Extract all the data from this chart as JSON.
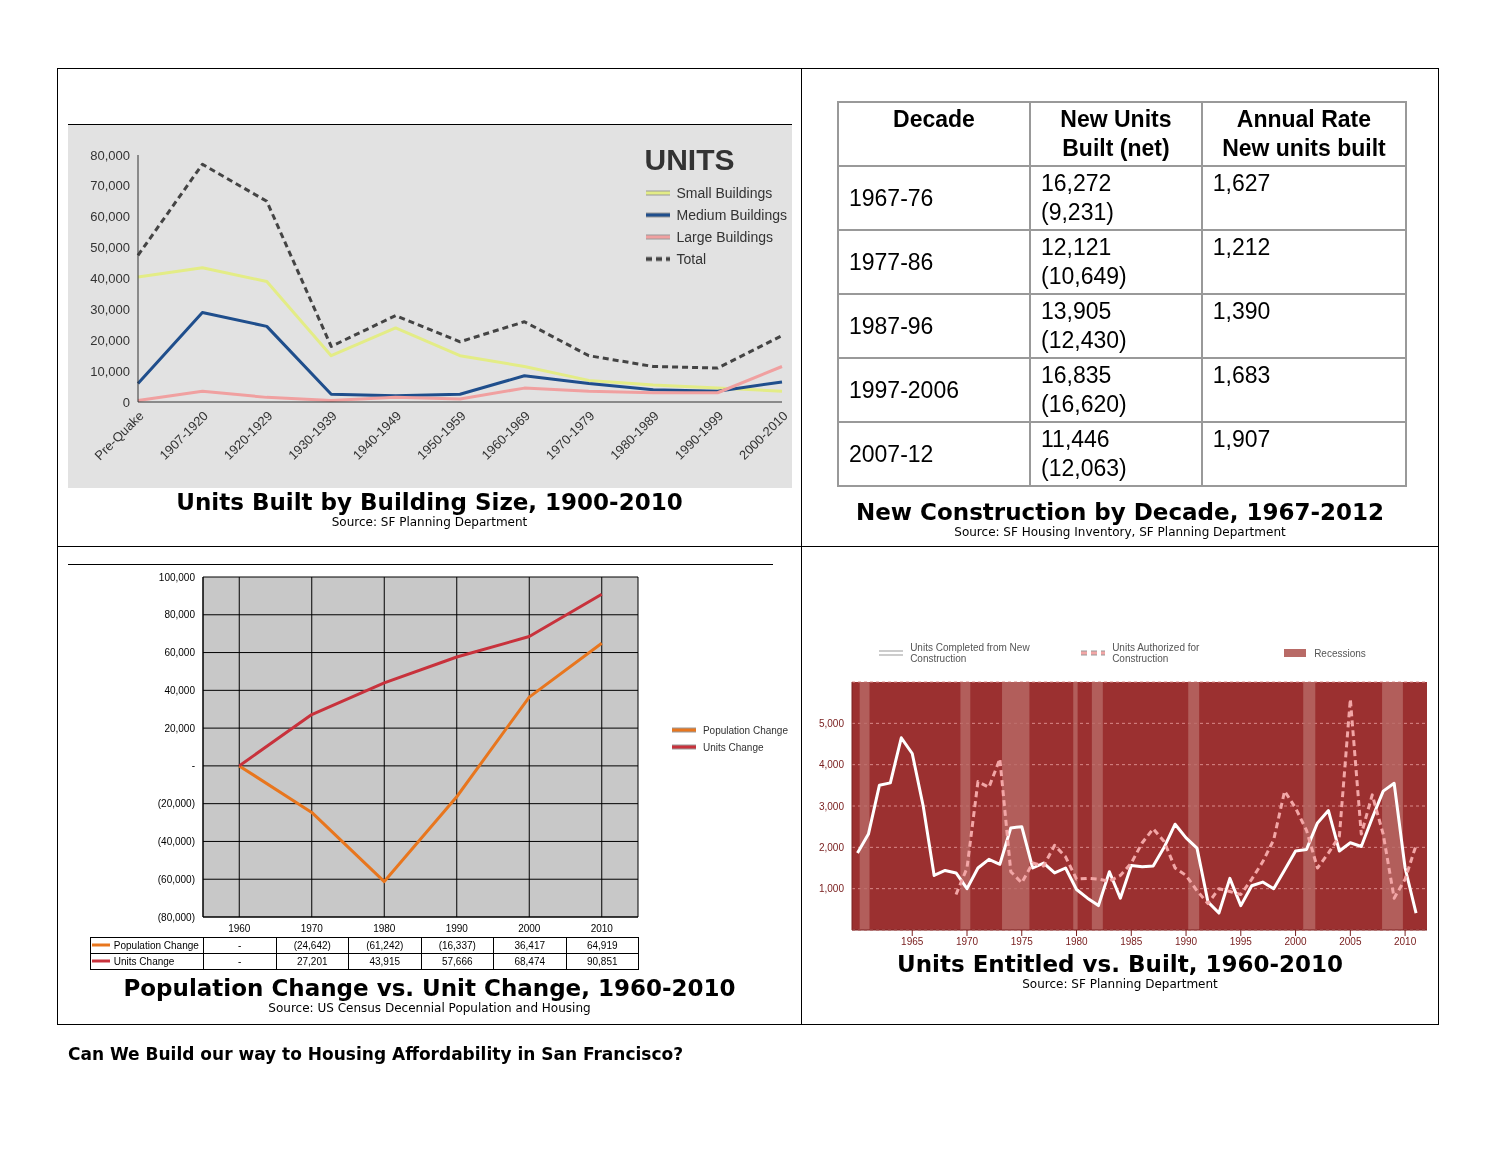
{
  "chart_data": [
    {
      "type": "line",
      "title": "Units Built by Building Size, 1900-2010",
      "annotations": [
        "Source: SF Planning Department"
      ],
      "legend_title": "UNITS",
      "legend": "top right",
      "categories": [
        "Pre-Quake",
        "1907-1920",
        "1920-1929",
        "1930-1939",
        "1940-1949",
        "1950-1959",
        "1960-1969",
        "1970-1979",
        "1980-1989",
        "1990-1999",
        "2000-2010"
      ],
      "ylim": [
        0,
        80000
      ],
      "yticks": [
        0,
        {
          "value": 10000,
          "label": "10,000"
        },
        {
          "value": 20000,
          "label": "20,000"
        },
        {
          "value": 30000,
          "label": "30,000"
        },
        {
          "value": 40000,
          "label": "40,000"
        },
        {
          "value": 50000,
          "label": "50,000"
        },
        {
          "value": 60000,
          "label": "60,000"
        },
        {
          "value": 70000,
          "label": "70,000"
        },
        {
          "value": 80000,
          "label": "80,000"
        }
      ],
      "series": [
        {
          "name": "Small Buildings",
          "color": "#e3ec86",
          "values": [
            40500,
            43500,
            39000,
            15000,
            24000,
            15000,
            11500,
            7000,
            5500,
            4500,
            3500
          ]
        },
        {
          "name": "Medium Buildings",
          "color": "#1f4e8c",
          "values": [
            6000,
            29000,
            24500,
            2500,
            2000,
            2500,
            8500,
            6000,
            4000,
            3500,
            6500
          ]
        },
        {
          "name": "Large Buildings",
          "color": "#f0a0a0",
          "values": [
            500,
            3500,
            1500,
            500,
            1500,
            1000,
            4500,
            3500,
            3000,
            3000,
            11500
          ]
        },
        {
          "name": "Total",
          "color": "#444444",
          "line_style": "dashed",
          "values": [
            47500,
            77000,
            65000,
            18000,
            28000,
            19500,
            26000,
            15000,
            11500,
            11000,
            21500
          ]
        }
      ]
    },
    {
      "type": "other",
      "title": "New Construction by Decade, 1967-2012",
      "annotations": [
        "Source: SF Housing Inventory, SF Planning Department"
      ],
      "xlabel": "Decade",
      "categories": [
        "1967-76",
        "1977-86",
        "1987-96",
        "1997-2006",
        "2007-12"
      ],
      "series": [
        {
          "name": "New Units Built (net)",
          "values": [
            16272,
            12121,
            13905,
            16835,
            11446
          ],
          "value_labels": [
            "16,272",
            "12,121",
            "13,905",
            "16,835",
            "11,446"
          ]
        },
        {
          "values": [
            9231,
            10649,
            12430,
            16620,
            12063
          ],
          "value_labels": [
            "(9,231)",
            "(10,649)",
            "(12,430)",
            "(16,620)",
            "(12,063)"
          ]
        },
        {
          "name": "Annual Rate New units built",
          "values": [
            1627,
            1212,
            1390,
            1683,
            1907
          ],
          "value_labels": [
            "1,627",
            "1,212",
            "1,390",
            "1,683",
            "1,907"
          ]
        }
      ]
    },
    {
      "type": "line",
      "title": "Population Change vs. Unit Change, 1960-2010",
      "annotations": [
        "Source: US Census Decennial Population and Housing"
      ],
      "legend": "right",
      "grid": true,
      "categories": [
        "1960",
        "1970",
        "1980",
        "1990",
        "2000",
        "2010"
      ],
      "ylim": [
        -80000,
        100000
      ],
      "yticks": [
        {
          "value": -80000,
          "label": "(80,000)"
        },
        {
          "value": -60000,
          "label": "(60,000)"
        },
        {
          "value": -40000,
          "label": "(40,000)"
        },
        {
          "value": -20000,
          "label": "(20,000)"
        },
        {
          "value": 0,
          "label": "-"
        },
        {
          "value": 20000,
          "label": "20,000"
        },
        {
          "value": 40000,
          "label": "40,000"
        },
        {
          "value": 60000,
          "label": "60,000"
        },
        {
          "value": 80000,
          "label": "80,000"
        },
        {
          "value": 100000,
          "label": "100,000"
        }
      ],
      "series": [
        {
          "name": "Population Change",
          "color": "#e8761e",
          "values": [
            0,
            -24642,
            -61242,
            -16337,
            36417,
            64919
          ],
          "value_labels": [
            "-",
            "(24,642)",
            "(61,242)",
            "(16,337)",
            "36,417",
            "64,919"
          ]
        },
        {
          "name": "Units Change",
          "color": "#c8323c",
          "values": [
            0,
            27201,
            43915,
            57666,
            68474,
            90851
          ],
          "value_labels": [
            "-",
            "27,201",
            "43,915",
            "57,666",
            "68,474",
            "90,851"
          ]
        }
      ]
    },
    {
      "type": "line",
      "title": "Units Entitled vs. Built, 1960-2010",
      "annotations": [
        "Source: SF Planning Department",
        "Can We Build our way to Housing Affordability in San Francisco?"
      ],
      "legend": "top",
      "grid": "y",
      "xlim": [
        1959.5,
        2012
      ],
      "xticks": [
        1965,
        1970,
        1975,
        1980,
        1985,
        1990,
        1995,
        2000,
        2005,
        2010
      ],
      "ylim": [
        0,
        6000
      ],
      "yticks": [
        {
          "value": 1000,
          "label": "1,000"
        },
        {
          "value": 2000,
          "label": "2,000"
        },
        {
          "value": 3000,
          "label": "3,000"
        },
        {
          "value": 4000,
          "label": "4,000"
        },
        {
          "value": 5000,
          "label": "5,000"
        }
      ],
      "bands": [
        {
          "axis": "x",
          "from": 1960.2,
          "to": 1961.1,
          "label": "Recessions",
          "color": "#b86a66"
        },
        {
          "axis": "x",
          "from": 1969.4,
          "to": 1970.3,
          "color": "#b86a66"
        },
        {
          "axis": "x",
          "from": 1973.2,
          "to": 1975.7,
          "color": "#b86a66"
        },
        {
          "axis": "x",
          "from": 1979.7,
          "to": 1980.1,
          "color": "#b86a66"
        },
        {
          "axis": "x",
          "from": 1981.4,
          "to": 1982.4,
          "color": "#b86a66"
        },
        {
          "axis": "x",
          "from": 1990.2,
          "to": 1991.2,
          "color": "#b86a66"
        },
        {
          "axis": "x",
          "from": 2000.7,
          "to": 2001.8,
          "color": "#b86a66"
        },
        {
          "axis": "x",
          "from": 2007.9,
          "to": 2009.8,
          "color": "#b86a66"
        }
      ],
      "series": [
        {
          "name": "Units Completed from New Construction",
          "color": "#ffffff",
          "x": [
            1960,
            1961,
            1962,
            1963,
            1964,
            1965,
            1966,
            1967,
            1968,
            1969,
            1970,
            1971,
            1972,
            1973,
            1974,
            1975,
            1976,
            1977,
            1978,
            1979,
            1980,
            1981,
            1982,
            1983,
            1984,
            1985,
            1986,
            1987,
            1988,
            1989,
            1990,
            1991,
            1992,
            1993,
            1994,
            1995,
            1996,
            1997,
            1998,
            1999,
            2000,
            2001,
            2002,
            2003,
            2004,
            2005,
            2006,
            2007,
            2008,
            2009,
            2010,
            2011
          ],
          "values": [
            1860,
            2320,
            3500,
            3560,
            4650,
            4270,
            3000,
            1320,
            1440,
            1380,
            1000,
            1500,
            1710,
            1590,
            2470,
            2500,
            1500,
            1620,
            1380,
            1500,
            980,
            770,
            590,
            1410,
            770,
            1560,
            1530,
            1550,
            2000,
            2560,
            2230,
            1980,
            680,
            410,
            1250,
            590,
            1070,
            1160,
            1000,
            1450,
            1910,
            1950,
            2590,
            2890,
            1910,
            2110,
            2020,
            2710,
            3360,
            3550,
            1500,
            410
          ]
        },
        {
          "name": "Units Authorized for Construction",
          "color": "#f2a6a6",
          "line_style": "dashed",
          "x": [
            1969,
            1970,
            1971,
            1972,
            1973,
            1974,
            1975,
            1976,
            1977,
            1978,
            1979,
            1980,
            1981,
            1982,
            1983,
            1984,
            1985,
            1986,
            1987,
            1988,
            1989,
            1990,
            1991,
            1992,
            1993,
            1994,
            1995,
            1996,
            1997,
            1998,
            1999,
            2000,
            2001,
            2002,
            2003,
            2004,
            2005,
            2006,
            2007,
            2008,
            2009,
            2010,
            2011
          ],
          "values": [
            860,
            1500,
            3590,
            3450,
            4140,
            1410,
            1140,
            1620,
            1550,
            2050,
            1770,
            1230,
            1250,
            1230,
            1180,
            1320,
            1620,
            2110,
            2450,
            2140,
            1500,
            1320,
            950,
            640,
            1000,
            930,
            860,
            1230,
            1650,
            2180,
            3360,
            2950,
            2410,
            1500,
            1860,
            2270,
            5590,
            2320,
            3270,
            2320,
            770,
            1230,
            2050
          ]
        }
      ]
    }
  ]
}
